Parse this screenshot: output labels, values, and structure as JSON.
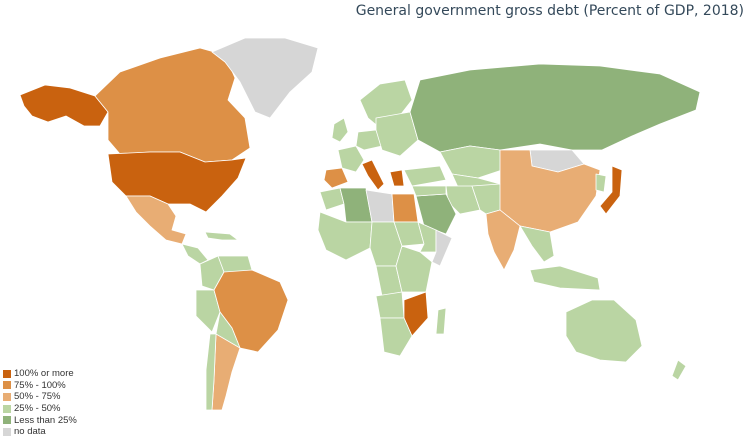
{
  "title": "General government gross debt (Percent of GDP, 2018)",
  "legend": [
    {
      "label": "100% or more",
      "color": "#c9620f"
    },
    {
      "label": "75% - 100%",
      "color": "#dd9046"
    },
    {
      "label": "50% - 75%",
      "color": "#e8ad74"
    },
    {
      "label": "25% - 50%",
      "color": "#bad5a3"
    },
    {
      "label": "Less than 25%",
      "color": "#8fb27a"
    },
    {
      "label": "no data",
      "color": "#d6d6d6"
    }
  ],
  "map_data": {
    "categories": [
      "100% or more",
      "75% - 100%",
      "50% - 75%",
      "25% - 50%",
      "Less than 25%",
      "no data"
    ],
    "regions": [
      {
        "name": "Alaska",
        "category": "100% or more"
      },
      {
        "name": "United States",
        "category": "100% or more"
      },
      {
        "name": "Canada",
        "category": "75% - 100%"
      },
      {
        "name": "Greenland",
        "category": "no data"
      },
      {
        "name": "Mexico",
        "category": "50% - 75%"
      },
      {
        "name": "Brazil",
        "category": "75% - 100%"
      },
      {
        "name": "Argentina",
        "category": "50% - 75%"
      },
      {
        "name": "Russia",
        "category": "Less than 25%"
      },
      {
        "name": "Kazakhstan",
        "category": "25% - 50%"
      },
      {
        "name": "Mongolia",
        "category": "no data"
      },
      {
        "name": "China",
        "category": "50% - 75%"
      },
      {
        "name": "India",
        "category": "50% - 75%"
      },
      {
        "name": "Japan",
        "category": "100% or more"
      },
      {
        "name": "Saudi Arabia",
        "category": "Less than 25%"
      },
      {
        "name": "Libya",
        "category": "no data"
      },
      {
        "name": "Egypt",
        "category": "75% - 100%"
      },
      {
        "name": "Algeria",
        "category": "Less than 25%"
      },
      {
        "name": "Somalia",
        "category": "no data"
      },
      {
        "name": "Mozambique",
        "category": "100% or more"
      },
      {
        "name": "Australia",
        "category": "25% - 50%"
      },
      {
        "name": "Italy",
        "category": "100% or more"
      },
      {
        "name": "Greece",
        "category": "100% or more"
      },
      {
        "name": "Spain",
        "category": "75% - 100%"
      }
    ]
  }
}
